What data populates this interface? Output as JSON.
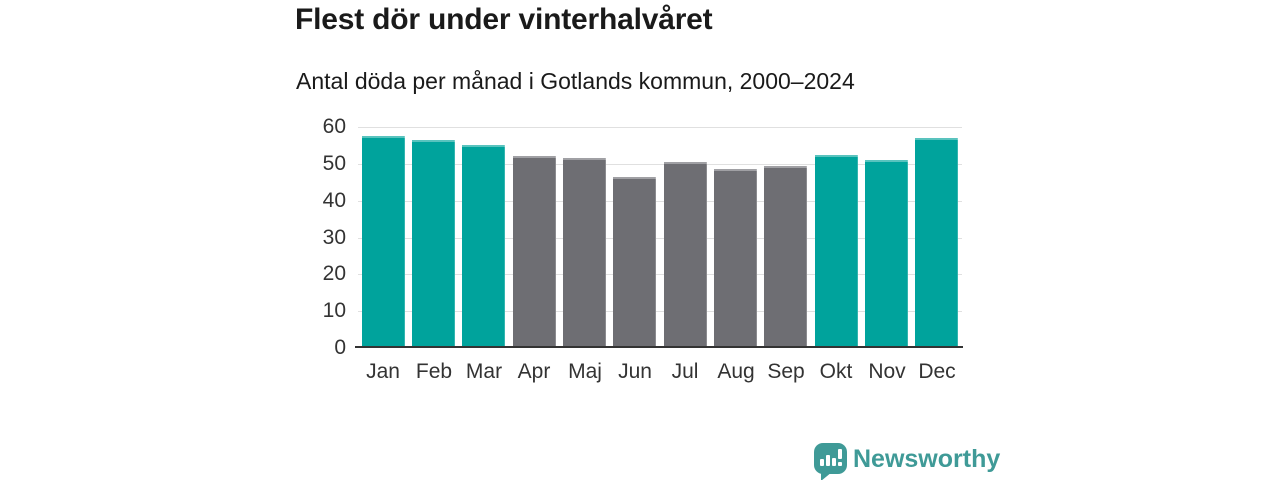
{
  "header": {
    "title": "Flest dör under vinterhalvåret",
    "subtitle": "Antal döda per månad i Gotlands kommun, 2000–2024"
  },
  "chart_data": {
    "type": "bar",
    "title": "Flest dör under vinterhalvåret",
    "subtitle": "Antal döda per månad i Gotlands kommun, 2000–2024",
    "categories": [
      "Jan",
      "Feb",
      "Mar",
      "Apr",
      "Maj",
      "Jun",
      "Jul",
      "Aug",
      "Sep",
      "Okt",
      "Nov",
      "Dec"
    ],
    "values": [
      57.5,
      56.5,
      55,
      52,
      51.5,
      46.5,
      50.5,
      48.5,
      49.5,
      52.5,
      51,
      57
    ],
    "bar_colors": [
      "teal",
      "teal",
      "teal",
      "gray",
      "gray",
      "gray",
      "gray",
      "gray",
      "gray",
      "teal",
      "teal",
      "teal"
    ],
    "colors": {
      "teal": "#00a39c",
      "gray": "#6e6e73"
    },
    "highlight_meaning": "winter-half-year months highlighted in teal",
    "xlabel": "",
    "ylabel": "",
    "ylim": [
      0,
      60
    ],
    "yticks": [
      0,
      10,
      20,
      30,
      40,
      50,
      60
    ],
    "grid": true,
    "legend": false
  },
  "footer": {
    "brand": "Newsworthy",
    "brand_color": "#3f9a97",
    "logo_icon": "bar-chart-speech-bubble"
  }
}
